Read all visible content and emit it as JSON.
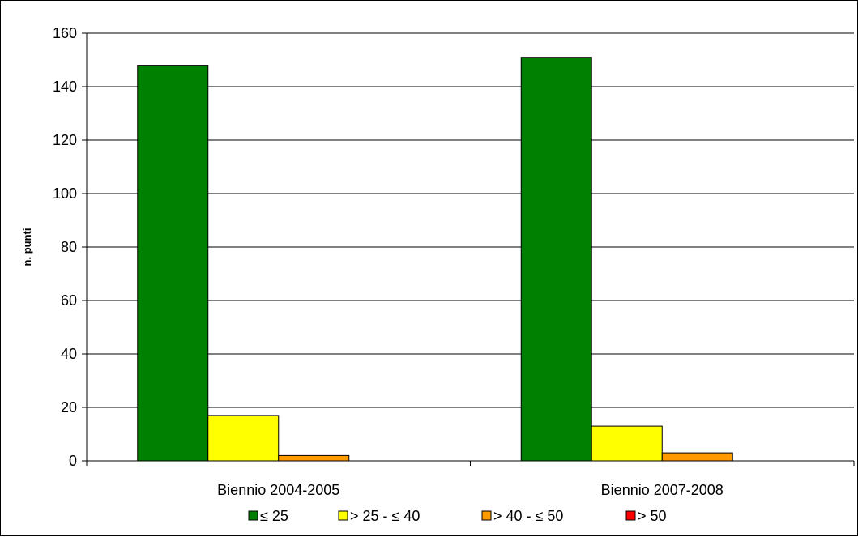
{
  "chart_data": {
    "type": "bar",
    "categories": [
      "Biennio 2004-2005",
      "Biennio 2007-2008"
    ],
    "series": [
      {
        "name": "≤ 25",
        "values": [
          148,
          151
        ],
        "color": "#008000"
      },
      {
        "name": "> 25 - ≤ 40",
        "values": [
          17,
          13
        ],
        "color": "#FFFF00"
      },
      {
        "name": "> 40 - ≤ 50",
        "values": [
          2,
          3
        ],
        "color": "#FF9900"
      },
      {
        "name": "> 50",
        "values": [
          0,
          0
        ],
        "color": "#FF0000"
      }
    ],
    "ylabel": "n. punti",
    "ylim": [
      0,
      160
    ],
    "yticks": [
      0,
      20,
      40,
      60,
      80,
      100,
      120,
      140,
      160
    ],
    "grid": true,
    "legend_position": "bottom"
  }
}
